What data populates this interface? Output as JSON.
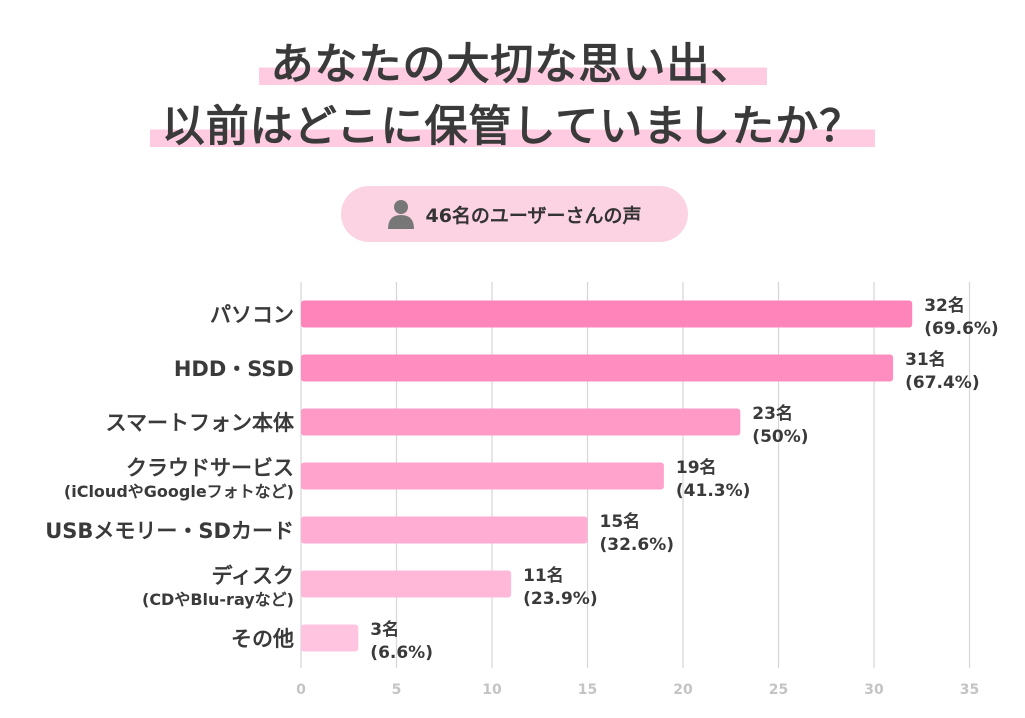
{
  "title": {
    "line1": "あなたの大切な思い出、",
    "line2": "以前はどこに保管していましたか？"
  },
  "badge": {
    "icon": "person-icon",
    "text": "46名のユーザーさんの声"
  },
  "chart_data": {
    "type": "bar",
    "orientation": "horizontal",
    "categories": [
      {
        "label": "パソコン",
        "sub": ""
      },
      {
        "label": "HDD・SSD",
        "sub": ""
      },
      {
        "label": "スマートフォン本体",
        "sub": ""
      },
      {
        "label": "クラウドサービス",
        "sub": "(iCloudやGoogleフォトなど)"
      },
      {
        "label": "USBメモリー・SDカード",
        "sub": ""
      },
      {
        "label": "ディスク",
        "sub": "(CDやBlu-rayなど)"
      },
      {
        "label": "その他",
        "sub": ""
      }
    ],
    "values": [
      32,
      31,
      23,
      19,
      15,
      11,
      3
    ],
    "data_labels": [
      [
        "32名",
        "(69.6%)"
      ],
      [
        "31名",
        "(67.4%)"
      ],
      [
        "23名",
        "(50%)"
      ],
      [
        "19名",
        "(41.3%)"
      ],
      [
        "15名",
        "(32.6%)"
      ],
      [
        "11名",
        "(23.9%)"
      ],
      [
        "3名",
        "(6.6%)"
      ]
    ],
    "xlim": [
      0,
      35
    ],
    "xticks": [
      0,
      5,
      10,
      15,
      20,
      25,
      30,
      35
    ],
    "grid": true,
    "bar_colors": [
      "#ff84ba",
      "#ff8dbf",
      "#ff99c6",
      "#ffa3cc",
      "#ffadd2",
      "#ffb8d8",
      "#ffc4e0"
    ]
  }
}
